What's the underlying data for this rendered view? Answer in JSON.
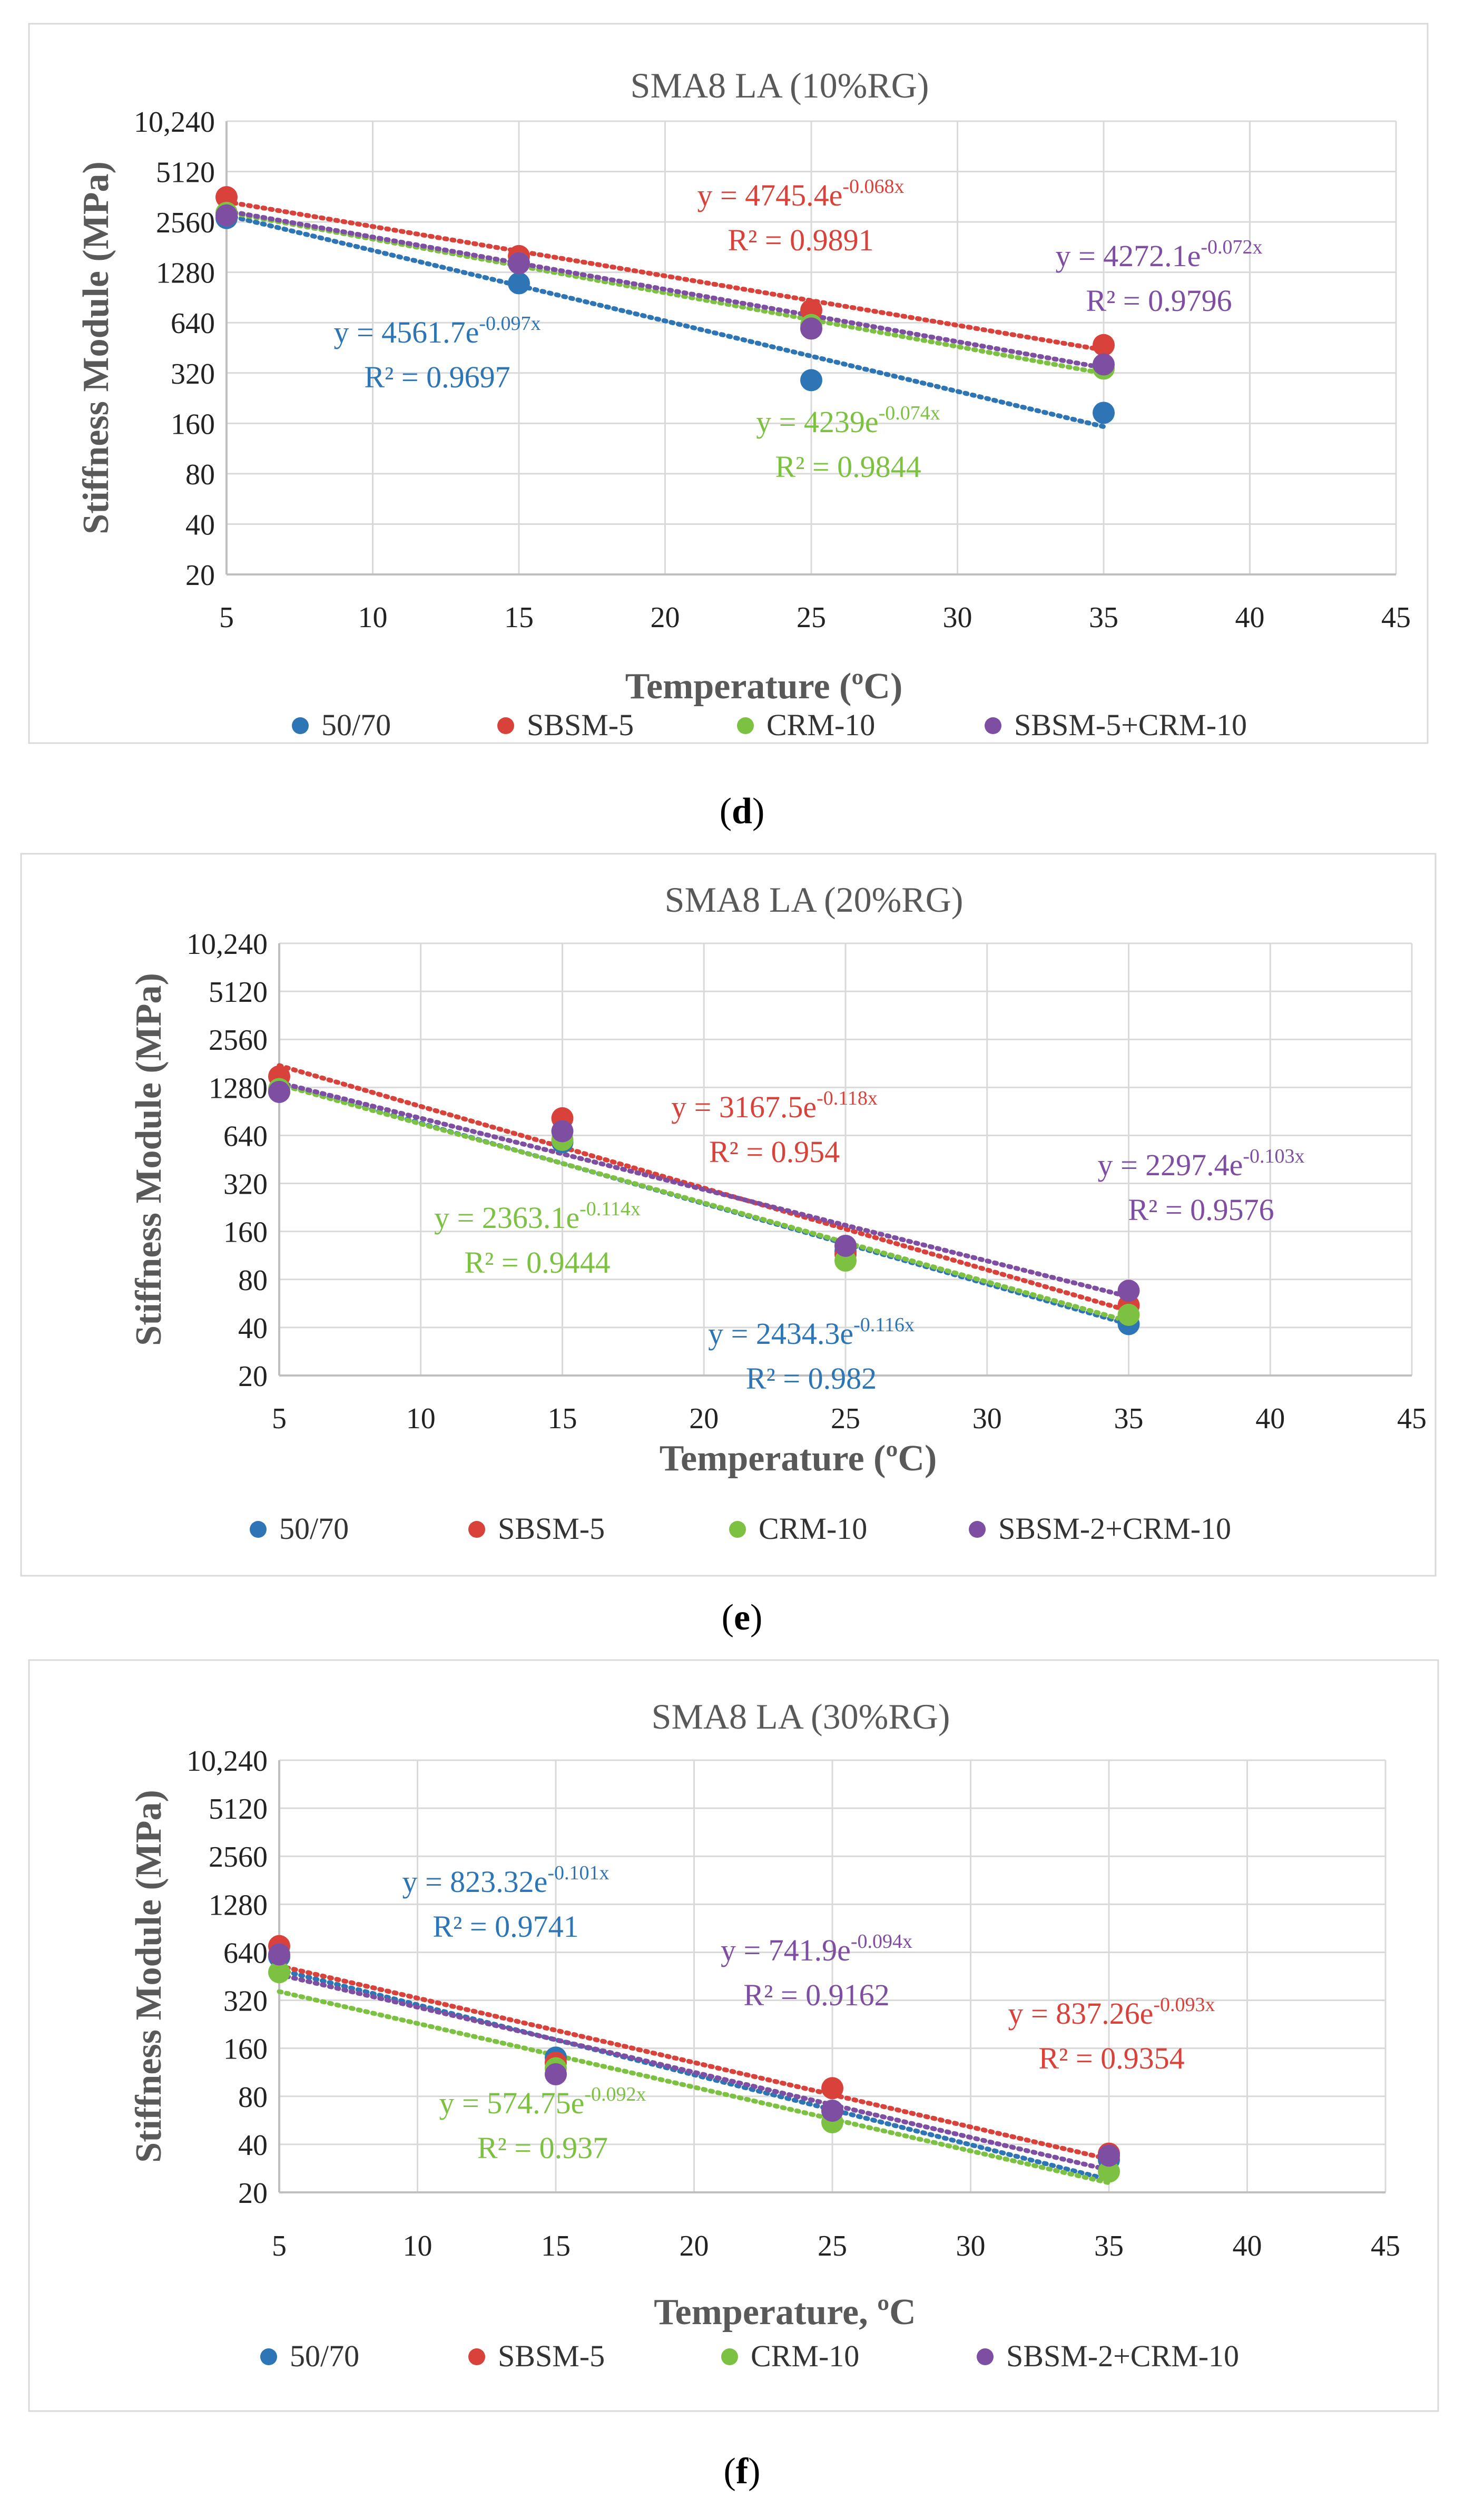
{
  "colors": {
    "c5070": "#2E75B6",
    "csbsm": "#D9423B",
    "ccrm": "#7DC142",
    "cmix": "#7E4EA3",
    "grid": "#D9D9D9",
    "axis": "#595959",
    "title": "#595959"
  },
  "charts": [
    {
      "label": "d",
      "chart_data": {
        "type": "scatter",
        "title": "SMA8 LA (10%RG)",
        "xlabel": "Temperature (ºC)",
        "ylabel": "Stiffness Module (MPa)",
        "xlim": [
          5,
          45
        ],
        "xticks": [
          "5",
          "10",
          "15",
          "20",
          "25",
          "30",
          "35",
          "40",
          "45"
        ],
        "yscale": "log2",
        "ylim": [
          20,
          10240
        ],
        "yticks": [
          "20",
          "40",
          "80",
          "160",
          "320",
          "640",
          "1280",
          "2560",
          "5120",
          "10,240"
        ],
        "x": [
          5,
          15,
          25,
          35
        ],
        "series": [
          {
            "name": "50/70",
            "values": [
              2700,
              1100,
              290,
              185
            ],
            "trend": {
              "a": 4561.7,
              "b": -0.097
            },
            "eq_base": "y = 4561.7e",
            "eq_exp": "-0.097x",
            "r2": "R² = 0.9697"
          },
          {
            "name": "SBSM-5",
            "values": [
              3600,
              1600,
              760,
              470
            ],
            "trend": {
              "a": 4745.4,
              "b": -0.068
            },
            "eq_base": "y = 4745.4e",
            "eq_exp": "-0.068x",
            "r2": "R² = 0.9891"
          },
          {
            "name": "CRM-10",
            "values": [
              2900,
              1450,
              620,
              340
            ],
            "trend": {
              "a": 4239,
              "b": -0.074
            },
            "eq_base": "y = 4239e",
            "eq_exp": "-0.074x",
            "r2": "R² = 0.9844"
          },
          {
            "name": "SBSM-5+CRM-10",
            "values": [
              2800,
              1450,
              590,
              360
            ],
            "trend": {
              "a": 4272.1,
              "b": -0.072
            },
            "eq_base": "y = 4272.1e",
            "eq_exp": "-0.072x",
            "r2": "R² = 0.9796"
          }
        ]
      }
    },
    {
      "label": "e",
      "chart_data": {
        "type": "scatter",
        "title": "SMA8 LA (20%RG)",
        "xlabel": "Temperature (ºC)",
        "ylabel": "Stiffness Module (MPa)",
        "xlim": [
          5,
          45
        ],
        "xticks": [
          "5",
          "10",
          "15",
          "20",
          "25",
          "30",
          "35",
          "40",
          "45"
        ],
        "yscale": "log2",
        "ylim": [
          20,
          10240
        ],
        "yticks": [
          "20",
          "40",
          "80",
          "160",
          "320",
          "640",
          "1280",
          "2560",
          "5120",
          "10,240"
        ],
        "x": [
          5,
          15,
          25,
          35
        ],
        "series": [
          {
            "name": "50/70",
            "values": [
              1200,
              580,
              120,
              42
            ],
            "trend": {
              "a": 2434.3,
              "b": -0.116
            },
            "eq_base": "y = 2434.3e",
            "eq_exp": "-0.116x",
            "r2": "R² = 0.982"
          },
          {
            "name": "SBSM-5",
            "values": [
              1500,
              820,
              115,
              55
            ],
            "trend": {
              "a": 3167.5,
              "b": -0.118
            },
            "eq_base": "y = 3167.5e",
            "eq_exp": "-0.118x",
            "r2": "R² = 0.954"
          },
          {
            "name": "CRM-10",
            "values": [
              1250,
              600,
              105,
              48
            ],
            "trend": {
              "a": 2363.1,
              "b": -0.114
            },
            "eq_base": "y = 2363.1e",
            "eq_exp": "-0.114x",
            "r2": "R² = 0.9444"
          },
          {
            "name": "SBSM-2+CRM-10",
            "values": [
              1200,
              680,
              130,
              68
            ],
            "trend": {
              "a": 2297.4,
              "b": -0.103
            },
            "eq_base": "y = 2297.4e",
            "eq_exp": "-0.103x",
            "r2": "R² = 0.9576"
          }
        ]
      }
    },
    {
      "label": "f",
      "chart_data": {
        "type": "scatter",
        "title": "SMA8 LA (30%RG)",
        "xlabel": "Temperature, ºC",
        "ylabel": "Stiffness Module (MPa)",
        "xlim": [
          5,
          45
        ],
        "xticks": [
          "5",
          "10",
          "15",
          "20",
          "25",
          "30",
          "35",
          "40",
          "45"
        ],
        "yscale": "log2",
        "ylim": [
          20,
          10240
        ],
        "yticks": [
          "20",
          "40",
          "80",
          "160",
          "320",
          "640",
          "1280",
          "2560",
          "5120",
          "10,240"
        ],
        "x": [
          5,
          15,
          25,
          35
        ],
        "series": [
          {
            "name": "50/70",
            "values": [
              600,
              140,
              65,
              32
            ],
            "trend": {
              "a": 823.32,
              "b": -0.101
            },
            "eq_base": "y = 823.32e",
            "eq_exp": "-0.101x",
            "r2": "R² = 0.9741"
          },
          {
            "name": "SBSM-5",
            "values": [
              700,
              130,
              90,
              35
            ],
            "trend": {
              "a": 837.26,
              "b": -0.093
            },
            "eq_base": "y = 837.26e",
            "eq_exp": "-0.093x",
            "r2": "R² = 0.9354"
          },
          {
            "name": "CRM-10",
            "values": [
              480,
              120,
              55,
              27
            ],
            "trend": {
              "a": 574.75,
              "b": -0.092
            },
            "eq_base": "y = 574.75e",
            "eq_exp": "-0.092x",
            "r2": "R² = 0.937"
          },
          {
            "name": "SBSM-2+CRM-10",
            "values": [
              620,
              110,
              65,
              34
            ],
            "trend": {
              "a": 741.9,
              "b": -0.094
            },
            "eq_base": "y = 741.9e",
            "eq_exp": "-0.094x",
            "r2": "R² = 0.9162"
          }
        ]
      }
    }
  ]
}
